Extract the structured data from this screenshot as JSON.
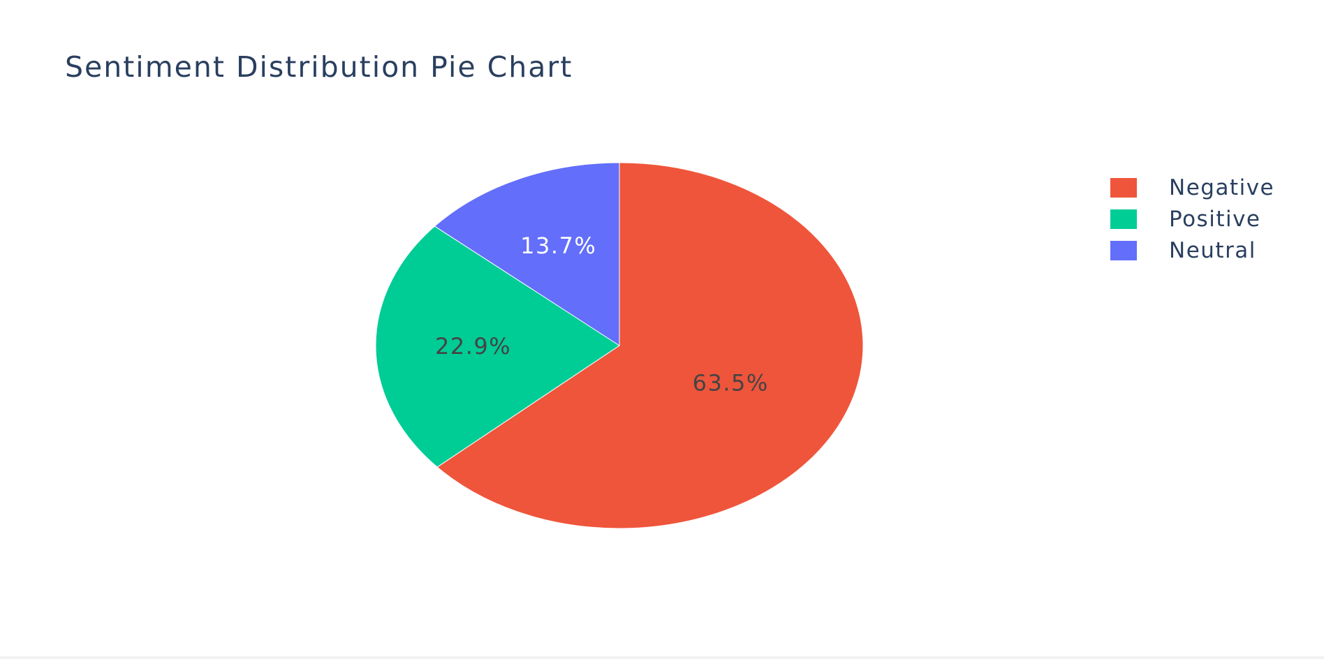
{
  "chart_data": {
    "type": "pie",
    "title": "Sentiment Distribution Pie Chart",
    "slices": [
      {
        "label": "Negative",
        "value": 63.5,
        "text": "63.5%",
        "color": "#ef553b",
        "text_color": "#444444"
      },
      {
        "label": "Positive",
        "value": 22.9,
        "text": "22.9%",
        "color": "#00cc96",
        "text_color": "#444444"
      },
      {
        "label": "Neutral",
        "value": 13.7,
        "text": "13.7%",
        "color": "#636efa",
        "text_color": "#ffffff"
      }
    ],
    "direction": "clockwise",
    "start_angle": "top",
    "legend_position": "right"
  }
}
